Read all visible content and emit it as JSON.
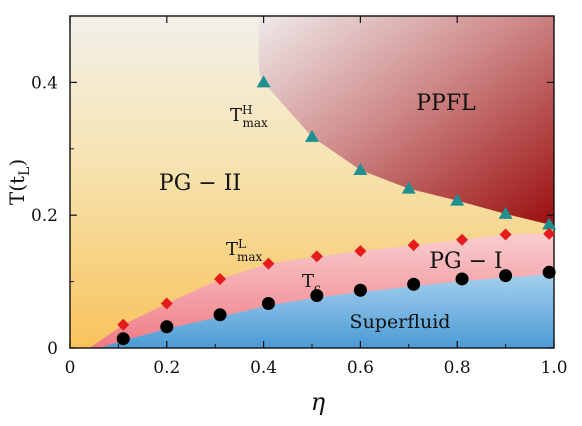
{
  "chart_data": {
    "type": "scatter",
    "title": "",
    "xlabel": "η",
    "ylabel": {
      "main": "T(t",
      "sub": "L",
      "close": ")"
    },
    "xlim": [
      0,
      1.0
    ],
    "ylim": [
      0,
      0.5
    ],
    "x_ticks": [
      0,
      0.2,
      0.4,
      0.6,
      0.8,
      1.0
    ],
    "x_tick_labels": [
      "0",
      "0.2",
      "0.4",
      "0.6",
      "0.8",
      "1.0"
    ],
    "y_ticks": [
      0,
      0.2,
      0.4
    ],
    "y_tick_labels": [
      "0",
      "0.2",
      "0.4"
    ],
    "grid": false,
    "series": [
      {
        "name": "T_max^H",
        "marker": "triangle",
        "color": "#1f8f8f",
        "x": [
          0.4,
          0.5,
          0.6,
          0.7,
          0.8,
          0.9,
          0.99
        ],
        "y": [
          0.4,
          0.318,
          0.268,
          0.24,
          0.222,
          0.202,
          0.186
        ]
      },
      {
        "name": "T_max^L",
        "marker": "diamond",
        "color": "#e61c1c",
        "x": [
          0.11,
          0.2,
          0.31,
          0.41,
          0.51,
          0.6,
          0.71,
          0.81,
          0.9,
          0.99
        ],
        "y": [
          0.035,
          0.067,
          0.104,
          0.127,
          0.138,
          0.146,
          0.155,
          0.163,
          0.171,
          0.172
        ]
      },
      {
        "name": "T_c",
        "marker": "circle",
        "color": "#000000",
        "x": [
          0.11,
          0.2,
          0.31,
          0.41,
          0.51,
          0.6,
          0.71,
          0.81,
          0.9,
          0.99
        ],
        "y": [
          0.014,
          0.032,
          0.05,
          0.067,
          0.079,
          0.087,
          0.096,
          0.104,
          0.109,
          0.114
        ]
      }
    ],
    "region_labels": {
      "ppfl": "PPFL",
      "pg2": "PG − II",
      "pg1": "PG − I",
      "superfluid": "Superfluid"
    },
    "annotations": {
      "tmax_h": {
        "main": "T",
        "sup": "H",
        "sub": "max"
      },
      "tmax_l": {
        "main": "T",
        "sup": "L",
        "sub": "max"
      },
      "tc": {
        "main": "T",
        "sub": "c"
      }
    },
    "colors": {
      "ppfl_dark": "#a01010",
      "ppfl_light": "#eaeaea",
      "pg2_top": "#f3f0e6",
      "pg2_bottom": "#f7c96a",
      "pg1": "#f4a0a0",
      "superfluid_top": "#8fc4ea",
      "superfluid_bottom": "#4e9ed8"
    }
  }
}
